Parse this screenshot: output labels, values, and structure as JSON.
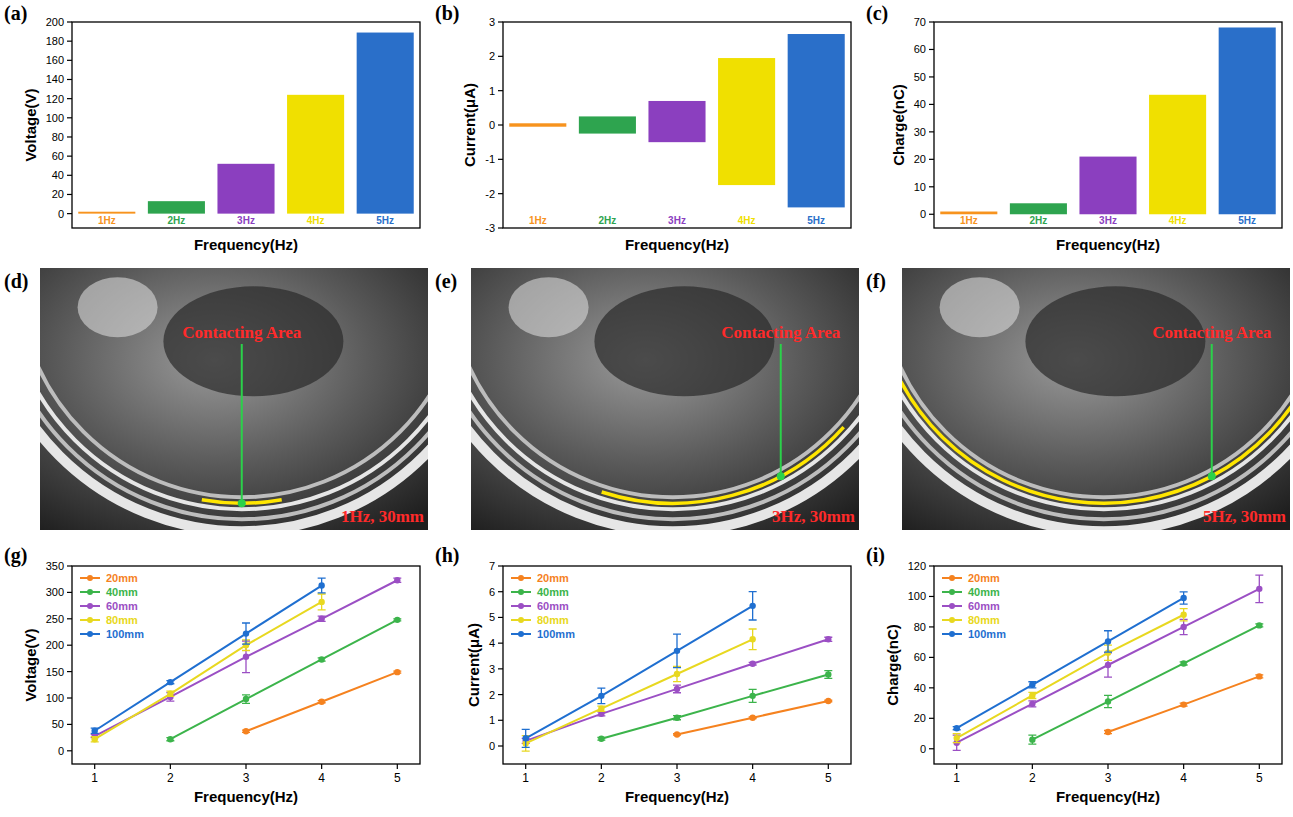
{
  "chart_data": [
    {
      "panel": "(a)",
      "type": "range_bar",
      "xlabel": "Frequency(Hz)",
      "ylabel": "Voltage(V)",
      "categories": [
        "1Hz",
        "2Hz",
        "3Hz",
        "4Hz",
        "5Hz"
      ],
      "values": [
        2,
        13,
        52,
        124,
        189
      ],
      "lower": [
        0,
        0,
        0,
        0,
        0
      ],
      "colors": [
        "#f7931e",
        "#2ea44f",
        "#8b3fbf",
        "#f0e000",
        "#2a6fc9"
      ],
      "ylim": [
        -15,
        200
      ],
      "yticks": [
        0,
        20,
        40,
        60,
        80,
        100,
        120,
        140,
        160,
        180,
        200
      ],
      "tick_labels": "y"
    },
    {
      "panel": "(b)",
      "type": "range_bar",
      "xlabel": "Frequency(Hz)",
      "ylabel": "Current(μA)",
      "categories": [
        "1Hz",
        "2Hz",
        "3Hz",
        "4Hz",
        "5Hz"
      ],
      "values": [
        0.05,
        0.25,
        0.7,
        1.95,
        2.65
      ],
      "lower": [
        -0.05,
        -0.25,
        -0.5,
        -1.75,
        -2.4
      ],
      "colors": [
        "#f7931e",
        "#2ea44f",
        "#8b3fbf",
        "#f0e000",
        "#2a6fc9"
      ],
      "ylim": [
        -3,
        3
      ],
      "yticks": [
        -3,
        -2,
        -1,
        0,
        1,
        2,
        3
      ],
      "tick_labels": "y"
    },
    {
      "panel": "(c)",
      "type": "range_bar",
      "xlabel": "Frequency(Hz)",
      "ylabel": "Charge(nC)",
      "categories": [
        "1Hz",
        "2Hz",
        "3Hz",
        "4Hz",
        "5Hz"
      ],
      "values": [
        1,
        4,
        21,
        43.5,
        68
      ],
      "lower": [
        0,
        0,
        0,
        0,
        0
      ],
      "colors": [
        "#f7931e",
        "#2ea44f",
        "#8b3fbf",
        "#f0e000",
        "#2a6fc9"
      ],
      "ylim": [
        -5,
        70
      ],
      "yticks": [
        0,
        10,
        20,
        30,
        40,
        50,
        60,
        70
      ],
      "tick_labels": "y"
    },
    {
      "panel": "(g)",
      "type": "line",
      "xlabel": "Frequency(Hz)",
      "ylabel": "Voltage(V)",
      "x": [
        1,
        2,
        3,
        4,
        5
      ],
      "xlim": [
        0.7,
        5.3
      ],
      "xticks": [
        1,
        2,
        3,
        4,
        5
      ],
      "ylim": [
        -25,
        350
      ],
      "yticks": [
        0,
        50,
        100,
        150,
        200,
        250,
        300,
        350
      ],
      "legend": "top-left",
      "marker": "circle",
      "series": [
        {
          "name": "20mm",
          "color": "#f5821f",
          "values": [
            null,
            null,
            37,
            93,
            149
          ],
          "errors": [
            null,
            null,
            2,
            2,
            2
          ]
        },
        {
          "name": "40mm",
          "color": "#3cb44b",
          "values": [
            null,
            22,
            98,
            173,
            248
          ],
          "errors": [
            null,
            3,
            8,
            3,
            2
          ]
        },
        {
          "name": "60mm",
          "color": "#9b4fc4",
          "values": [
            28,
            102,
            178,
            250,
            323
          ],
          "errors": [
            3,
            8,
            30,
            5,
            4
          ]
        },
        {
          "name": "80mm",
          "color": "#e8d820",
          "values": [
            22,
            108,
            200,
            282,
            null
          ],
          "errors": [
            5,
            5,
            10,
            15,
            null
          ]
        },
        {
          "name": "100mm",
          "color": "#1f6fd0",
          "values": [
            38,
            130,
            222,
            313,
            null
          ],
          "errors": [
            5,
            3,
            20,
            14,
            null
          ]
        }
      ]
    },
    {
      "panel": "(h)",
      "type": "line",
      "xlabel": "Frequency(Hz)",
      "ylabel": "Current(μA)",
      "x": [
        1,
        2,
        3,
        4,
        5
      ],
      "xlim": [
        0.7,
        5.3
      ],
      "xticks": [
        1,
        2,
        3,
        4,
        5
      ],
      "ylim": [
        -0.7,
        7
      ],
      "yticks": [
        0,
        1,
        2,
        3,
        4,
        5,
        6,
        7
      ],
      "legend": "top-left",
      "marker": "circle",
      "series": [
        {
          "name": "20mm",
          "color": "#f5821f",
          "values": [
            null,
            null,
            0.45,
            1.1,
            1.75
          ],
          "errors": [
            null,
            null,
            0.03,
            0.03,
            0.03
          ]
        },
        {
          "name": "40mm",
          "color": "#3cb44b",
          "values": [
            null,
            0.28,
            1.1,
            1.95,
            2.78
          ],
          "errors": [
            null,
            0.05,
            0.08,
            0.25,
            0.15
          ]
        },
        {
          "name": "60mm",
          "color": "#9b4fc4",
          "values": [
            0.2,
            1.25,
            2.22,
            3.2,
            4.15
          ],
          "errors": [
            0.1,
            0.08,
            0.15,
            0.05,
            0.08
          ]
        },
        {
          "name": "80mm",
          "color": "#e8d820",
          "values": [
            0.1,
            1.45,
            2.8,
            4.15,
            null
          ],
          "errors": [
            0.3,
            0.1,
            0.3,
            0.4,
            null
          ]
        },
        {
          "name": "100mm",
          "color": "#1f6fd0",
          "values": [
            0.3,
            1.95,
            3.7,
            5.45,
            null
          ],
          "errors": [
            0.35,
            0.3,
            0.65,
            0.55,
            null
          ]
        }
      ]
    },
    {
      "panel": "(i)",
      "type": "line",
      "xlabel": "Frequency(Hz)",
      "ylabel": "Charge(nC)",
      "x": [
        1,
        2,
        3,
        4,
        5
      ],
      "xlim": [
        0.7,
        5.3
      ],
      "xticks": [
        1,
        2,
        3,
        4,
        5
      ],
      "ylim": [
        -10,
        120
      ],
      "yticks": [
        0,
        20,
        40,
        60,
        80,
        100,
        120
      ],
      "legend": "top-left",
      "marker": "circle",
      "series": [
        {
          "name": "20mm",
          "color": "#f5821f",
          "values": [
            null,
            null,
            11,
            29,
            47.5
          ],
          "errors": [
            null,
            null,
            1,
            1,
            1
          ]
        },
        {
          "name": "40mm",
          "color": "#3cb44b",
          "values": [
            null,
            6,
            31,
            56,
            81
          ],
          "errors": [
            null,
            3,
            4,
            1,
            1
          ]
        },
        {
          "name": "60mm",
          "color": "#9b4fc4",
          "values": [
            4,
            29.5,
            55,
            80,
            105
          ],
          "errors": [
            5,
            2,
            8,
            5,
            9
          ]
        },
        {
          "name": "80mm",
          "color": "#e8d820",
          "values": [
            7,
            35,
            63,
            88,
            null
          ],
          "errors": [
            3,
            2,
            5,
            4,
            null
          ]
        },
        {
          "name": "100mm",
          "color": "#1f6fd0",
          "values": [
            13.5,
            42,
            70.5,
            99,
            null
          ],
          "errors": [
            1,
            2,
            7,
            4,
            null
          ]
        }
      ]
    }
  ],
  "images": [
    {
      "panel": "(d)",
      "annotation": "Contacting Area",
      "caption": "1Hz, 30mm"
    },
    {
      "panel": "(e)",
      "annotation": "Contacting Area",
      "caption": "3Hz, 30mm"
    },
    {
      "panel": "(f)",
      "annotation": "Contacting Area",
      "caption": "5Hz, 30mm"
    }
  ]
}
